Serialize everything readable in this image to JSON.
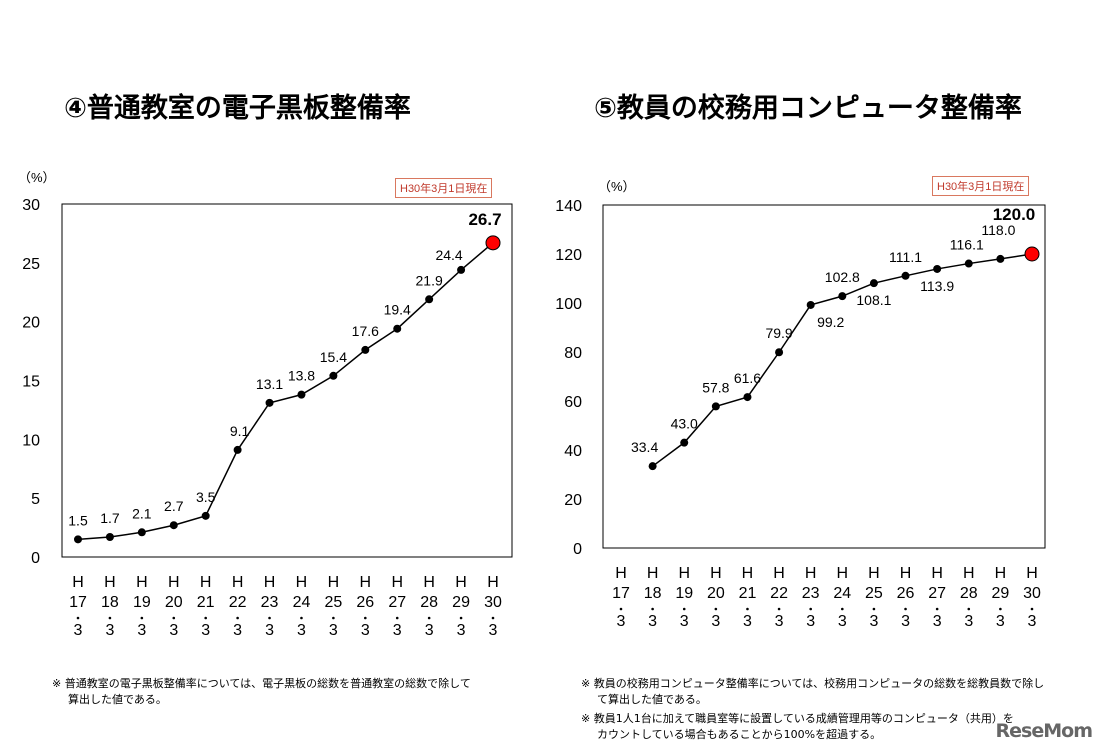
{
  "chart_data": [
    {
      "type": "line",
      "title": "④普通教室の電子黒板整備率",
      "ylabel": "（%）",
      "badge": "H30年3月1日現在",
      "categories": [
        "H17.3",
        "H18.3",
        "H19.3",
        "H20.3",
        "H21.3",
        "H22.3",
        "H23.3",
        "H24.3",
        "H25.3",
        "H26.3",
        "H27.3",
        "H28.3",
        "H29.3",
        "H30.3"
      ],
      "values": [
        1.5,
        1.7,
        2.1,
        2.7,
        3.5,
        9.1,
        13.1,
        13.8,
        15.4,
        17.6,
        19.4,
        21.9,
        24.4,
        26.7
      ],
      "value_labels": [
        "1.5",
        "1.7",
        "2.1",
        "2.7",
        "3.5",
        "9.1",
        "13.1",
        "13.8",
        "15.4",
        "17.6",
        "19.4",
        "21.9",
        "24.4",
        "26.7"
      ],
      "ylim": [
        0,
        30
      ],
      "yticks": [
        0,
        5,
        10,
        15,
        20,
        25,
        30
      ],
      "highlight_last": true,
      "highlight_color": "#ff0000",
      "grid": false,
      "note": [
        "※ 普通教室の電子黒板整備率については、電子黒板の総数を普通教室の総数で除して",
        "算出した値である。"
      ]
    },
    {
      "type": "line",
      "title": "⑤教員の校務用コンピュータ整備率",
      "ylabel": "（%）",
      "badge": "H30年3月1日現在",
      "categories": [
        "H17.3",
        "H18.3",
        "H19.3",
        "H20.3",
        "H21.3",
        "H22.3",
        "H23.3",
        "H24.3",
        "H25.3",
        "H26.3",
        "H27.3",
        "H28.3",
        "H29.3",
        "H30.3"
      ],
      "values": [
        null,
        33.4,
        43.0,
        57.8,
        61.6,
        79.9,
        99.2,
        102.8,
        108.1,
        111.1,
        113.9,
        116.1,
        118.0,
        120.0
      ],
      "value_labels": [
        "",
        "33.4",
        "43.0",
        "57.8",
        "61.6",
        "79.9",
        "99.2",
        "102.8",
        "108.1",
        "111.1",
        "113.9",
        "116.1",
        "118.0",
        "120.0"
      ],
      "ylim": [
        0,
        140
      ],
      "yticks": [
        0,
        20,
        40,
        60,
        80,
        100,
        120,
        140
      ],
      "highlight_last": true,
      "highlight_color": "#ff0000",
      "grid": false,
      "note": [
        "※ 教員の校務用コンピュータ整備率については、校務用コンピュータの総数を総教員数で除し",
        "て算出した値である。",
        "※ 教員1人1台に加えて職員室等に設置している成績管理用等のコンピュータ（共用）を",
        "カウントしている場合もあることから100%を超過する。"
      ]
    }
  ],
  "watermark": "ReseMom"
}
